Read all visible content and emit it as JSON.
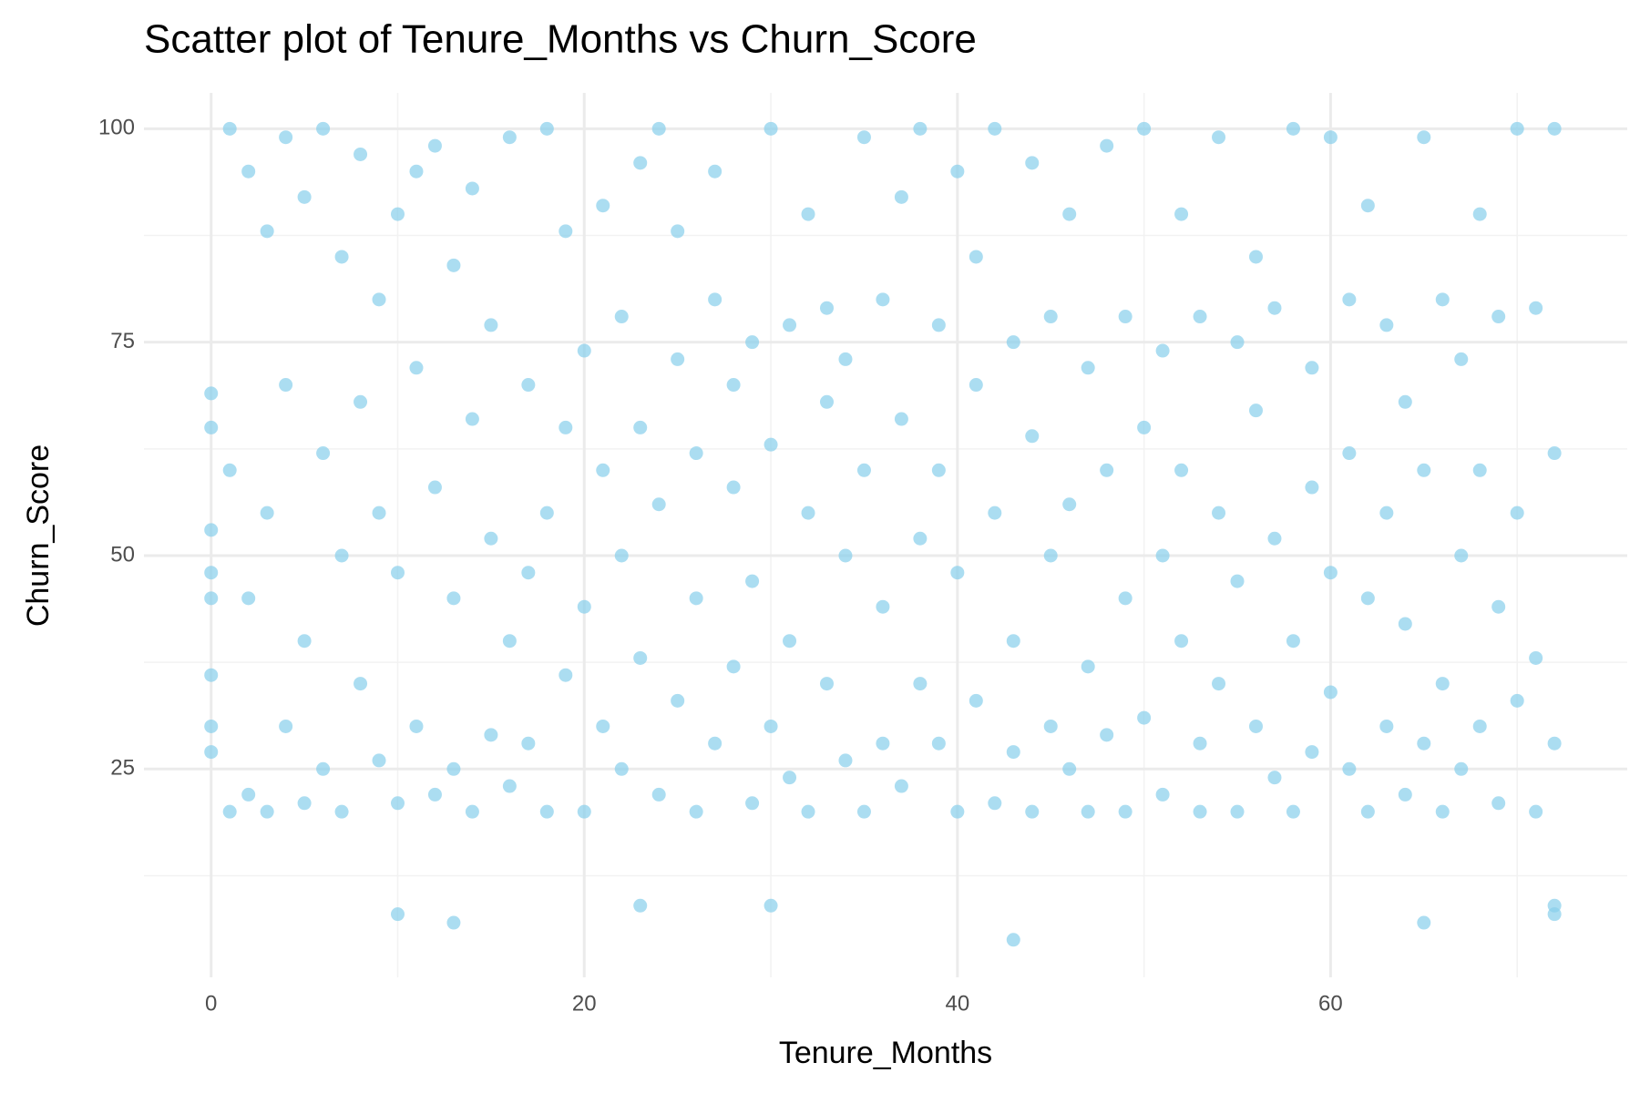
{
  "chart_data": {
    "type": "scatter",
    "title": "Scatter plot of Tenure_Months vs Churn_Score",
    "x_label": "Tenure_Months",
    "y_label": "Churn_Score",
    "color": "#87ceeb",
    "grid": true,
    "xlim": [
      -3.6,
      75.9
    ],
    "ylim": [
      0.6,
      104.2
    ],
    "xticks": [
      0,
      20,
      40,
      60
    ],
    "yticks": [
      25,
      50,
      75,
      100
    ],
    "x_minor_ticks": [
      10,
      30,
      50,
      70
    ],
    "y_minor_ticks": [
      12.5,
      37.5,
      62.5,
      87.5
    ],
    "x": [
      0,
      0,
      0,
      0,
      0,
      0,
      0,
      0,
      1,
      1,
      1,
      2,
      2,
      2,
      3,
      3,
      3,
      4,
      4,
      4,
      5,
      5,
      5,
      6,
      6,
      6,
      7,
      7,
      7,
      8,
      8,
      8,
      9,
      9,
      9,
      10,
      10,
      10,
      11,
      11,
      11,
      12,
      12,
      12,
      13,
      13,
      13,
      14,
      14,
      14,
      15,
      15,
      15,
      16,
      16,
      16,
      17,
      17,
      17,
      18,
      18,
      18,
      19,
      19,
      19,
      20,
      20,
      20,
      21,
      21,
      21,
      22,
      22,
      22,
      23,
      23,
      23,
      24,
      24,
      24,
      25,
      25,
      25,
      26,
      26,
      26,
      27,
      27,
      27,
      28,
      28,
      28,
      29,
      29,
      29,
      30,
      30,
      30,
      31,
      31,
      31,
      32,
      32,
      32,
      33,
      33,
      33,
      34,
      34,
      34,
      35,
      35,
      35,
      36,
      36,
      36,
      37,
      37,
      37,
      38,
      38,
      38,
      39,
      39,
      39,
      40,
      40,
      40,
      41,
      41,
      41,
      42,
      42,
      42,
      43,
      43,
      43,
      44,
      44,
      44,
      45,
      45,
      45,
      46,
      46,
      46,
      47,
      47,
      47,
      48,
      48,
      48,
      49,
      49,
      49,
      50,
      50,
      50,
      51,
      51,
      51,
      52,
      52,
      52,
      53,
      53,
      53,
      54,
      54,
      54,
      55,
      55,
      55,
      56,
      56,
      56,
      57,
      57,
      57,
      58,
      58,
      58,
      59,
      59,
      59,
      60,
      60,
      60,
      61,
      61,
      61,
      62,
      62,
      62,
      63,
      63,
      63,
      64,
      64,
      64,
      65,
      65,
      65,
      66,
      66,
      66,
      67,
      67,
      67,
      68,
      68,
      68,
      69,
      69,
      69,
      70,
      70,
      70,
      71,
      71,
      71,
      72,
      72,
      72,
      10,
      13,
      23,
      30,
      43,
      65,
      72,
      72
    ],
    "y": [
      69,
      65,
      53,
      48,
      45,
      36,
      30,
      27,
      100,
      60,
      20,
      95,
      45,
      22,
      88,
      55,
      20,
      99,
      70,
      30,
      92,
      40,
      21,
      100,
      62,
      25,
      85,
      50,
      20,
      97,
      35,
      68,
      80,
      26,
      55,
      90,
      48,
      21,
      72,
      30,
      95,
      98,
      58,
      22,
      84,
      45,
      25,
      66,
      93,
      20,
      77,
      52,
      29,
      99,
      40,
      23,
      70,
      28,
      48,
      100,
      55,
      20,
      88,
      36,
      65,
      74,
      44,
      20,
      91,
      60,
      30,
      78,
      25,
      50,
      65,
      38,
      96,
      100,
      56,
      22,
      73,
      33,
      88,
      62,
      45,
      20,
      80,
      28,
      95,
      58,
      70,
      37,
      75,
      21,
      47,
      100,
      63,
      30,
      77,
      40,
      24,
      90,
      55,
      20,
      68,
      35,
      79,
      73,
      26,
      50,
      99,
      60,
      20,
      80,
      44,
      28,
      66,
      23,
      92,
      100,
      52,
      35,
      77,
      28,
      60,
      95,
      48,
      20,
      70,
      33,
      85,
      100,
      55,
      21,
      75,
      40,
      27,
      64,
      20,
      96,
      78,
      50,
      30,
      56,
      25,
      90,
      72,
      37,
      20,
      98,
      60,
      29,
      78,
      45,
      20,
      100,
      65,
      31,
      74,
      22,
      50,
      90,
      40,
      60,
      78,
      28,
      20,
      99,
      55,
      35,
      75,
      20,
      47,
      67,
      30,
      85,
      79,
      52,
      24,
      100,
      40,
      20,
      72,
      58,
      27,
      99,
      48,
      34,
      80,
      25,
      62,
      91,
      45,
      20,
      77,
      55,
      30,
      68,
      22,
      42,
      99,
      60,
      28,
      80,
      35,
      20,
      73,
      50,
      25,
      90,
      30,
      60,
      78,
      44,
      21,
      100,
      55,
      33,
      79,
      38,
      20,
      100,
      62,
      28,
      8,
      7,
      9,
      9,
      5,
      7,
      9,
      8
    ]
  }
}
